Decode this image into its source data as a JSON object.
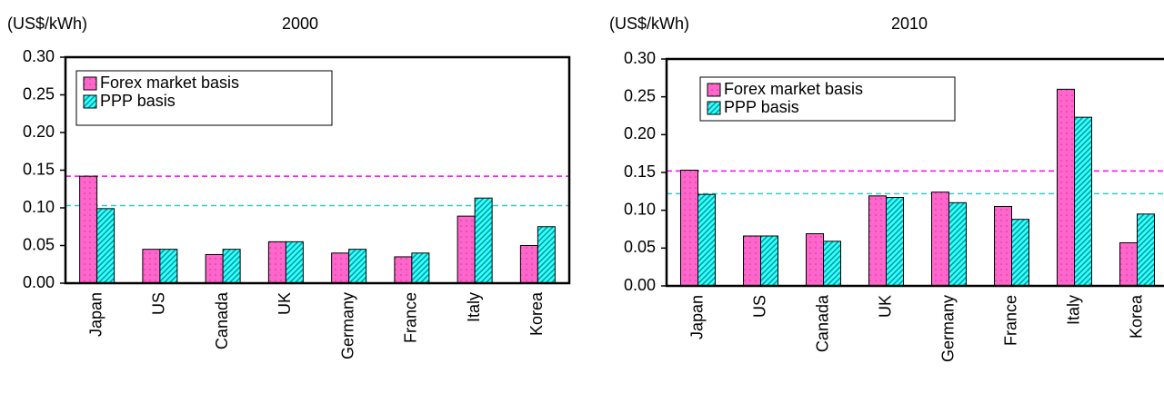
{
  "chart_data": [
    {
      "type": "bar",
      "title": "2000",
      "unit_label": "(US$/kWh)",
      "categories": [
        "Japan",
        "US",
        "Canada",
        "UK",
        "Germany",
        "France",
        "Italy",
        "Korea"
      ],
      "series": [
        {
          "name": "Forex market basis",
          "color": "#ff66cc",
          "pattern": "dots",
          "values": [
            0.142,
            0.045,
            0.038,
            0.055,
            0.04,
            0.035,
            0.089,
            0.05
          ]
        },
        {
          "name": "PPP basis",
          "color": "#33ffff",
          "pattern": "hatch",
          "values": [
            0.099,
            0.045,
            0.045,
            0.055,
            0.045,
            0.04,
            0.113,
            0.075
          ]
        }
      ],
      "reference_lines": [
        {
          "value": 0.142,
          "color": "#ff00ff"
        },
        {
          "value": 0.103,
          "color": "#33cccc"
        }
      ],
      "ylim": [
        0,
        0.3
      ],
      "yticks": [
        {
          "value": 0,
          "label": "0.00"
        },
        {
          "value": 0.05,
          "label": "0.05"
        },
        {
          "value": 0.1,
          "label": "0.10"
        },
        {
          "value": 0.15,
          "label": "0.15"
        },
        {
          "value": 0.2,
          "label": "0.20"
        },
        {
          "value": 0.25,
          "label": "0.25"
        },
        {
          "value": 0.3,
          "label": "0.30"
        }
      ],
      "legend": "top-left"
    },
    {
      "type": "bar",
      "title": "2010",
      "unit_label": "(US$/kWh)",
      "categories": [
        "Japan",
        "US",
        "Canada",
        "UK",
        "Germany",
        "France",
        "Italy",
        "Korea"
      ],
      "series": [
        {
          "name": "Forex market basis",
          "color": "#ff66cc",
          "pattern": "dots",
          "values": [
            0.153,
            0.066,
            0.069,
            0.119,
            0.124,
            0.105,
            0.26,
            0.057
          ]
        },
        {
          "name": "PPP basis",
          "color": "#33ffff",
          "pattern": "hatch",
          "values": [
            0.121,
            0.066,
            0.059,
            0.117,
            0.11,
            0.088,
            0.223,
            0.095
          ]
        }
      ],
      "reference_lines": [
        {
          "value": 0.152,
          "color": "#ff00ff"
        },
        {
          "value": 0.122,
          "color": "#33cccc"
        }
      ],
      "ylim": [
        0,
        0.3
      ],
      "yticks": [
        {
          "value": 0,
          "label": "0.00"
        },
        {
          "value": 0.05,
          "label": "0.05"
        },
        {
          "value": 0.1,
          "label": "0.10"
        },
        {
          "value": 0.15,
          "label": "0.15"
        },
        {
          "value": 0.2,
          "label": "0.20"
        },
        {
          "value": 0.25,
          "label": "0.25"
        },
        {
          "value": 0.3,
          "label": "0.30"
        }
      ],
      "legend": "top-left"
    }
  ]
}
